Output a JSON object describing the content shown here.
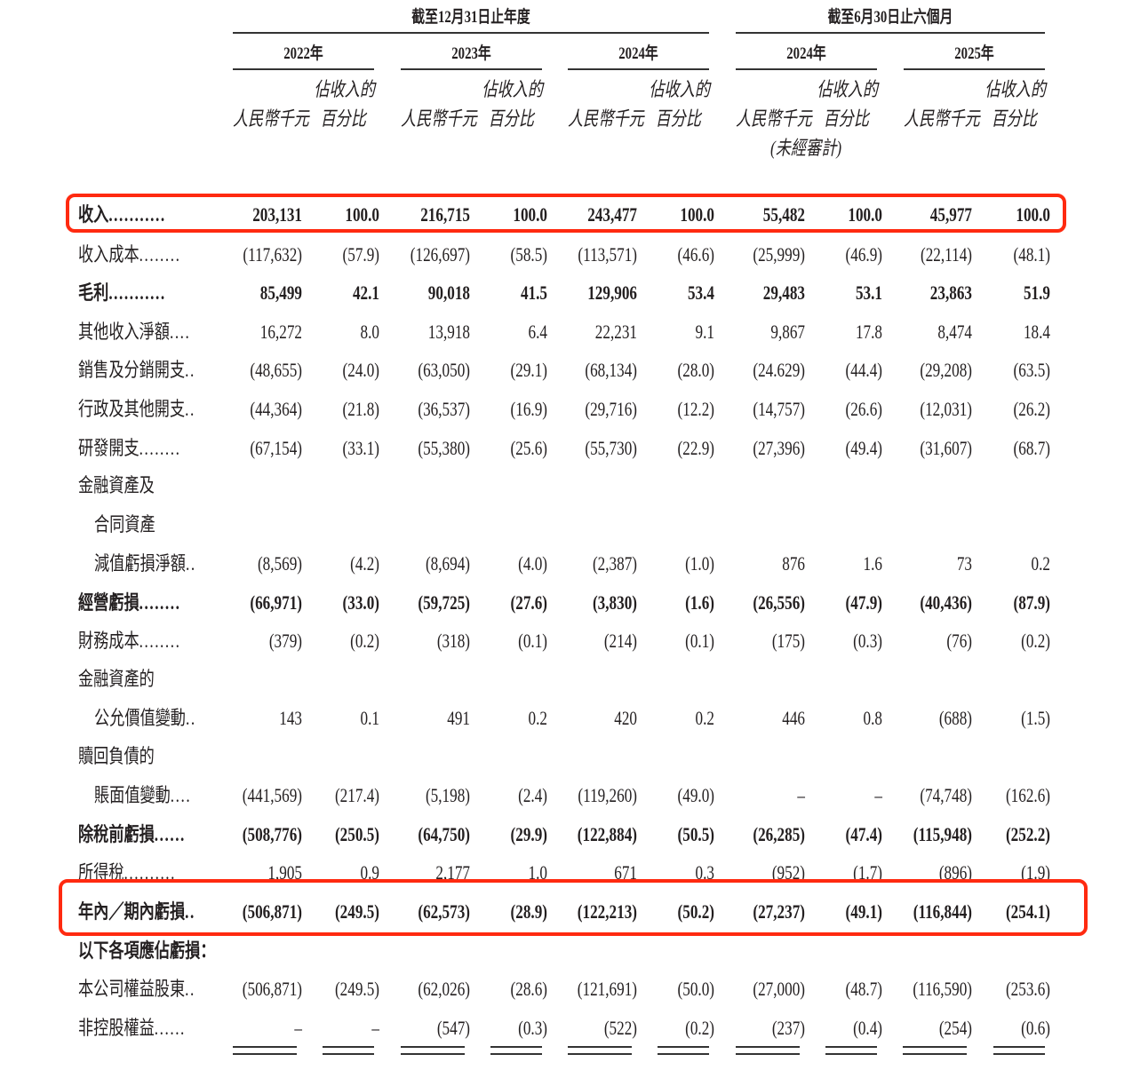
{
  "header": {
    "group_annual": "截至12月31日止年度",
    "group_halfyear": "截至6月30日止六個月",
    "years": [
      "2022年",
      "2023年",
      "2024年",
      "2024年",
      "2025年"
    ],
    "col_amount": "人民幣千元",
    "col_pct_line1": "佔收入的",
    "col_pct_line2": "百分比",
    "unaudited": "(未經審計)"
  },
  "highlight_color": "#ff2a10",
  "rows": [
    {
      "label": "收入",
      "dots": "...........",
      "bold": true,
      "highlight": true,
      "values": [
        "203,131",
        "100.0",
        "216,715",
        "100.0",
        "243,477",
        "100.0",
        "55,482",
        "100.0",
        "45,977",
        "100.0"
      ]
    },
    {
      "label": "收入成本",
      "dots": "........",
      "values": [
        "(117,632)",
        "(57.9)",
        "(126,697)",
        "(58.5)",
        "(113,571)",
        "(46.6)",
        "(25,999)",
        "(46.9)",
        "(22,114)",
        "(48.1)"
      ]
    },
    {
      "label": "毛利",
      "dots": "...........",
      "bold": true,
      "values": [
        "85,499",
        "42.1",
        "90,018",
        "41.5",
        "129,906",
        "53.4",
        "29,483",
        "53.1",
        "23,863",
        "51.9"
      ]
    },
    {
      "label": "其他收入淨額",
      "dots": "....",
      "values": [
        "16,272",
        "8.0",
        "13,918",
        "6.4",
        "22,231",
        "9.1",
        "9,867",
        "17.8",
        "8,474",
        "18.4"
      ]
    },
    {
      "label": "銷售及分銷開支",
      "dots": "..",
      "values": [
        "(48,655)",
        "(24.0)",
        "(63,050)",
        "(29.1)",
        "(68,134)",
        "(28.0)",
        "(24.629)",
        "(44.4)",
        "(29,208)",
        "(63.5)"
      ]
    },
    {
      "label": "行政及其他開支",
      "dots": "..",
      "values": [
        "(44,364)",
        "(21.8)",
        "(36,537)",
        "(16.9)",
        "(29,716)",
        "(12.2)",
        "(14,757)",
        "(26.6)",
        "(12,031)",
        "(26.2)"
      ]
    },
    {
      "label": "研發開支",
      "dots": "........",
      "values": [
        "(67,154)",
        "(33.1)",
        "(55,380)",
        "(25.6)",
        "(55,730)",
        "(22.9)",
        "(27,396)",
        "(49.4)",
        "(31,607)",
        "(68.7)"
      ]
    },
    {
      "label": "金融資產及",
      "values": []
    },
    {
      "label": "合同資產",
      "indent": true,
      "values": []
    },
    {
      "label": "減值虧損淨額",
      "dots": "..",
      "indent": true,
      "values": [
        "(8,569)",
        "(4.2)",
        "(8,694)",
        "(4.0)",
        "(2,387)",
        "(1.0)",
        "876",
        "1.6",
        "73",
        "0.2"
      ]
    },
    {
      "label": "經營虧損",
      "dots": "........",
      "bold": true,
      "values": [
        "(66,971)",
        "(33.0)",
        "(59,725)",
        "(27.6)",
        "(3,830)",
        "(1.6)",
        "(26,556)",
        "(47.9)",
        "(40,436)",
        "(87.9)"
      ]
    },
    {
      "label": "財務成本",
      "dots": "........",
      "values": [
        "(379)",
        "(0.2)",
        "(318)",
        "(0.1)",
        "(214)",
        "(0.1)",
        "(175)",
        "(0.3)",
        "(76)",
        "(0.2)"
      ]
    },
    {
      "label": "金融資產的",
      "values": []
    },
    {
      "label": "公允價值變動",
      "dots": "..",
      "indent": true,
      "values": [
        "143",
        "0.1",
        "491",
        "0.2",
        "420",
        "0.2",
        "446",
        "0.8",
        "(688)",
        "(1.5)"
      ]
    },
    {
      "label": "贖回負債的",
      "values": []
    },
    {
      "label": "賬面值變動",
      "dots": "....",
      "indent": true,
      "values": [
        "(441,569)",
        "(217.4)",
        "(5,198)",
        "(2.4)",
        "(119,260)",
        "(49.0)",
        "–",
        "–",
        "(74,748)",
        "(162.6)"
      ]
    },
    {
      "label": "除稅前虧損",
      "dots": "......",
      "bold": true,
      "values": [
        "(508,776)",
        "(250.5)",
        "(64,750)",
        "(29.9)",
        "(122,884)",
        "(50.5)",
        "(26,285)",
        "(47.4)",
        "(115,948)",
        "(252.2)"
      ]
    },
    {
      "label": "所得稅",
      "dots": "..........",
      "values": [
        "1,905",
        "0.9",
        "2,177",
        "1.0",
        "671",
        "0.3",
        "(952)",
        "(1.7)",
        "(896)",
        "(1.9)"
      ]
    },
    {
      "label": "年內／期內虧損",
      "dots": "..",
      "bold": true,
      "highlight": true,
      "values": [
        "(506,871)",
        "(249.5)",
        "(62,573)",
        "(28.9)",
        "(122,213)",
        "(50.2)",
        "(27,237)",
        "(49.1)",
        "(116,844)",
        "(254.1)"
      ]
    },
    {
      "label": "以下各項應佔虧損：",
      "bold": true,
      "values": []
    },
    {
      "label": "本公司權益股東",
      "dots": "..",
      "values": [
        "(506,871)",
        "(249.5)",
        "(62,026)",
        "(28.6)",
        "(121,691)",
        "(50.0)",
        "(27,000)",
        "(48.7)",
        "(116,590)",
        "(253.6)"
      ]
    },
    {
      "label": "非控股權益",
      "dots": "......",
      "values": [
        "–",
        "–",
        "(547)",
        "(0.3)",
        "(522)",
        "(0.2)",
        "(237)",
        "(0.4)",
        "(254)",
        "(0.6)"
      ]
    }
  ]
}
